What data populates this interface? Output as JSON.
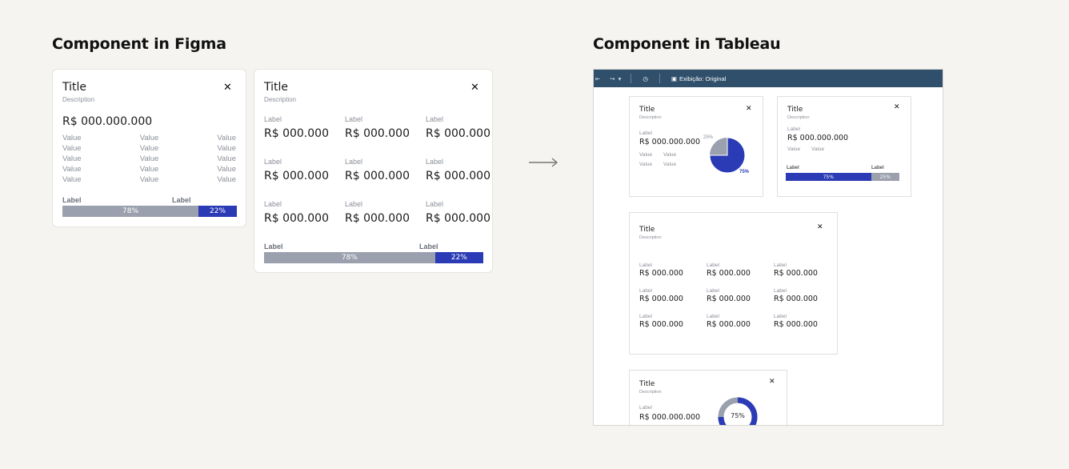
{
  "headings": {
    "figma": "Component in Figma",
    "tableau": "Component in Tableau"
  },
  "colors": {
    "accent": "#2b3bb5",
    "neutral": "#9aa0ad",
    "toolbar": "#2f4f6b",
    "background": "#f5f4f1"
  },
  "figma_card1": {
    "title": "Title",
    "description": "Description",
    "close": "✕",
    "total": "R$ 000.000.000",
    "rows": [
      [
        "Value",
        "Value",
        "Value"
      ],
      [
        "Value",
        "Value",
        "Value"
      ],
      [
        "Value",
        "Value",
        "Value"
      ],
      [
        "Value",
        "Value",
        "Value"
      ],
      [
        "Value",
        "Value",
        "Value"
      ]
    ],
    "bar": {
      "label_a": "Label",
      "label_b": "Label",
      "value_a": "78%",
      "value_b": "22%",
      "fraction_a": 0.78
    }
  },
  "figma_card2": {
    "title": "Title",
    "description": "Description",
    "close": "✕",
    "cells": [
      {
        "label": "Label",
        "value": "R$ 000.000"
      },
      {
        "label": "Label",
        "value": "R$ 000.000"
      },
      {
        "label": "Label",
        "value": "R$ 000.000"
      },
      {
        "label": "Label",
        "value": "R$ 000.000"
      },
      {
        "label": "Label",
        "value": "R$ 000.000"
      },
      {
        "label": "Label",
        "value": "R$ 000.000"
      },
      {
        "label": "Label",
        "value": "R$ 000.000"
      },
      {
        "label": "Label",
        "value": "R$ 000.000"
      },
      {
        "label": "Label",
        "value": "R$ 000.000"
      }
    ],
    "bar": {
      "label_a": "Label",
      "label_b": "Label",
      "value_a": "78%",
      "value_b": "22%",
      "fraction_a": 0.78
    }
  },
  "tableau": {
    "toolbar": {
      "view_label": "Exibição: Original"
    },
    "card_pie": {
      "title": "Title",
      "description": "Description",
      "close": "✕",
      "label": "Label",
      "total": "R$ 000.000.000",
      "rows": [
        [
          "Value",
          "Value"
        ],
        [
          "Value",
          "Value"
        ]
      ],
      "pie": {
        "small_label": "25%",
        "large_label": "75%",
        "fraction": 0.75
      }
    },
    "card_bar": {
      "title": "Title",
      "description": "Description",
      "close": "✕",
      "label": "Label",
      "total": "R$ 000.000.000",
      "rows": [
        [
          "Value",
          "Value"
        ]
      ],
      "bar": {
        "label_a": "Label",
        "label_b": "Label",
        "value_a": "75%",
        "value_b": "25%",
        "fraction_a": 0.75
      }
    },
    "card_grid": {
      "title": "Title",
      "description": "Description",
      "close": "✕",
      "cells": [
        {
          "label": "Label",
          "value": "R$ 000.000"
        },
        {
          "label": "Label",
          "value": "R$ 000.000"
        },
        {
          "label": "Label",
          "value": "R$ 000.000"
        },
        {
          "label": "Label",
          "value": "R$ 000.000"
        },
        {
          "label": "Label",
          "value": "R$ 000.000"
        },
        {
          "label": "Label",
          "value": "R$ 000.000"
        },
        {
          "label": "Label",
          "value": "R$ 000.000"
        },
        {
          "label": "Label",
          "value": "R$ 000.000"
        },
        {
          "label": "Label",
          "value": "R$ 000.000"
        }
      ]
    },
    "card_donut": {
      "title": "Title",
      "description": "Description",
      "close": "✕",
      "label": "Label",
      "total": "R$ 000.000.000",
      "donut": {
        "center_label": "75%",
        "fraction": 0.75
      }
    }
  }
}
